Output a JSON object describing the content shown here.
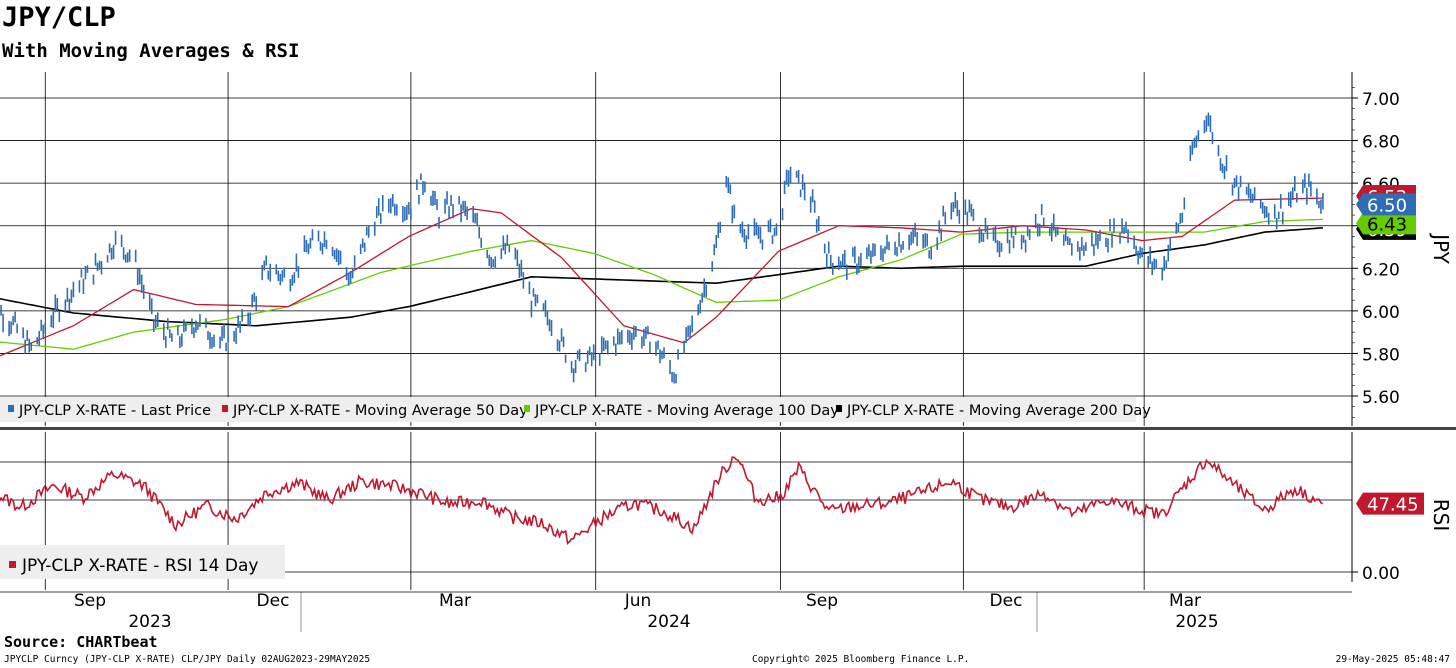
{
  "title": "JPY/CLP",
  "subtitle": "With Moving Averages & RSI",
  "source": "Source: CHARTbeat",
  "footer": {
    "left": "JPYCLP Curncy (JPY-CLP X-RATE) CLP/JPY  Daily 02AUG2023-29MAY2025",
    "middle": "Copyright© 2025 Bloomberg Finance L.P.",
    "right": "29-May-2025 05:48:47"
  },
  "chart_data": [
    {
      "type": "line",
      "panel": "price",
      "ylabel": "JPY",
      "ylim": [
        5.5,
        7.1
      ],
      "yticks": [
        "7.00",
        "6.80",
        "6.60",
        "6.40",
        "6.20",
        "6.00",
        "5.80",
        "5.60"
      ],
      "xrange": [
        "2023-08-02",
        "2025-05-29"
      ],
      "grid": true,
      "legend_position": "bottom-left",
      "series": [
        {
          "name": "JPY-CLP X-RATE - Last Price",
          "style": "bar",
          "color": "#2e6db4",
          "last_label": "6.50",
          "points": [
            [
              "2023-08-02",
              6.06
            ],
            [
              "2023-08-15",
              5.95
            ],
            [
              "2023-08-25",
              5.82
            ],
            [
              "2023-09-05",
              5.98
            ],
            [
              "2023-09-15",
              6.1
            ],
            [
              "2023-09-28",
              6.22
            ],
            [
              "2023-10-06",
              6.33
            ],
            [
              "2023-10-15",
              6.25
            ],
            [
              "2023-10-25",
              5.95
            ],
            [
              "2023-11-05",
              5.85
            ],
            [
              "2023-11-15",
              5.95
            ],
            [
              "2023-11-28",
              5.85
            ],
            [
              "2023-12-10",
              5.95
            ],
            [
              "2023-12-20",
              6.2
            ],
            [
              "2023-12-31",
              6.15
            ],
            [
              "2024-01-10",
              6.3
            ],
            [
              "2024-01-20",
              6.35
            ],
            [
              "2024-01-31",
              6.15
            ],
            [
              "2024-02-10",
              6.4
            ],
            [
              "2024-02-20",
              6.52
            ],
            [
              "2024-02-29",
              6.48
            ],
            [
              "2024-03-08",
              6.62
            ],
            [
              "2024-03-15",
              6.45
            ],
            [
              "2024-03-22",
              6.5
            ],
            [
              "2024-03-31",
              6.45
            ],
            [
              "2024-04-10",
              6.25
            ],
            [
              "2024-04-20",
              6.3
            ],
            [
              "2024-04-30",
              6.05
            ],
            [
              "2024-05-10",
              5.95
            ],
            [
              "2024-05-20",
              5.75
            ],
            [
              "2024-05-31",
              5.78
            ],
            [
              "2024-06-10",
              5.85
            ],
            [
              "2024-06-20",
              5.9
            ],
            [
              "2024-06-30",
              5.85
            ],
            [
              "2024-07-10",
              5.7
            ],
            [
              "2024-07-20",
              5.95
            ],
            [
              "2024-07-31",
              6.3
            ],
            [
              "2024-08-05",
              6.62
            ],
            [
              "2024-08-10",
              6.4
            ],
            [
              "2024-08-20",
              6.35
            ],
            [
              "2024-08-31",
              6.38
            ],
            [
              "2024-09-05",
              6.65
            ],
            [
              "2024-09-15",
              6.55
            ],
            [
              "2024-09-25",
              6.25
            ],
            [
              "2024-10-05",
              6.22
            ],
            [
              "2024-10-15",
              6.25
            ],
            [
              "2024-10-25",
              6.3
            ],
            [
              "2024-11-05",
              6.35
            ],
            [
              "2024-11-15",
              6.3
            ],
            [
              "2024-11-25",
              6.5
            ],
            [
              "2024-12-05",
              6.45
            ],
            [
              "2024-12-15",
              6.32
            ],
            [
              "2024-12-31",
              6.35
            ],
            [
              "2025-01-10",
              6.45
            ],
            [
              "2025-01-20",
              6.3
            ],
            [
              "2025-01-31",
              6.3
            ],
            [
              "2025-02-10",
              6.35
            ],
            [
              "2025-02-20",
              6.4
            ],
            [
              "2025-02-28",
              6.25
            ],
            [
              "2025-03-10",
              6.2
            ],
            [
              "2025-03-20",
              6.45
            ],
            [
              "2025-03-25",
              6.75
            ],
            [
              "2025-04-01",
              6.92
            ],
            [
              "2025-04-08",
              6.72
            ],
            [
              "2025-04-15",
              6.6
            ],
            [
              "2025-04-25",
              6.52
            ],
            [
              "2025-05-05",
              6.45
            ],
            [
              "2025-05-15",
              6.55
            ],
            [
              "2025-05-22",
              6.58
            ],
            [
              "2025-05-29",
              6.5
            ]
          ]
        },
        {
          "name": "JPY-CLP X-RATE - Moving Average 50 Day",
          "color": "#c0182f",
          "last_label": "6.53",
          "points": [
            [
              "2023-08-02",
              5.76
            ],
            [
              "2023-09-15",
              5.93
            ],
            [
              "2023-10-15",
              6.1
            ],
            [
              "2023-11-15",
              6.03
            ],
            [
              "2023-12-31",
              6.02
            ],
            [
              "2024-01-31",
              6.18
            ],
            [
              "2024-02-29",
              6.35
            ],
            [
              "2024-03-31",
              6.48
            ],
            [
              "2024-04-15",
              6.46
            ],
            [
              "2024-05-15",
              6.25
            ],
            [
              "2024-06-15",
              5.93
            ],
            [
              "2024-07-15",
              5.85
            ],
            [
              "2024-07-31",
              5.97
            ],
            [
              "2024-08-31",
              6.28
            ],
            [
              "2024-09-30",
              6.4
            ],
            [
              "2024-10-31",
              6.39
            ],
            [
              "2024-11-30",
              6.37
            ],
            [
              "2024-12-31",
              6.4
            ],
            [
              "2025-01-31",
              6.38
            ],
            [
              "2025-02-28",
              6.33
            ],
            [
              "2025-03-20",
              6.35
            ],
            [
              "2025-04-15",
              6.52
            ],
            [
              "2025-05-29",
              6.53
            ]
          ]
        },
        {
          "name": "JPY-CLP X-RATE - Moving Average 100 Day",
          "color": "#66cc00",
          "last_label": "6.43",
          "points": [
            [
              "2023-08-02",
              5.86
            ],
            [
              "2023-09-15",
              5.82
            ],
            [
              "2023-10-15",
              5.9
            ],
            [
              "2023-11-30",
              5.96
            ],
            [
              "2023-12-31",
              6.02
            ],
            [
              "2024-02-15",
              6.18
            ],
            [
              "2024-03-31",
              6.28
            ],
            [
              "2024-04-30",
              6.33
            ],
            [
              "2024-05-31",
              6.27
            ],
            [
              "2024-06-30",
              6.17
            ],
            [
              "2024-07-31",
              6.04
            ],
            [
              "2024-08-31",
              6.05
            ],
            [
              "2024-09-30",
              6.16
            ],
            [
              "2024-10-31",
              6.24
            ],
            [
              "2024-11-30",
              6.36
            ],
            [
              "2024-12-31",
              6.37
            ],
            [
              "2025-01-31",
              6.37
            ],
            [
              "2025-02-28",
              6.37
            ],
            [
              "2025-03-31",
              6.37
            ],
            [
              "2025-04-30",
              6.42
            ],
            [
              "2025-05-29",
              6.43
            ]
          ]
        },
        {
          "name": "JPY-CLP X-RATE - Moving Average 200 Day",
          "color": "#000000",
          "last_label": "6.39",
          "points": [
            [
              "2023-08-02",
              6.07
            ],
            [
              "2023-09-15",
              5.99
            ],
            [
              "2023-10-31",
              5.95
            ],
            [
              "2023-12-15",
              5.93
            ],
            [
              "2024-01-31",
              5.97
            ],
            [
              "2024-02-29",
              6.02
            ],
            [
              "2024-03-31",
              6.09
            ],
            [
              "2024-04-30",
              6.16
            ],
            [
              "2024-05-31",
              6.15
            ],
            [
              "2024-06-30",
              6.14
            ],
            [
              "2024-07-31",
              6.13
            ],
            [
              "2024-08-31",
              6.17
            ],
            [
              "2024-09-30",
              6.21
            ],
            [
              "2024-10-31",
              6.2
            ],
            [
              "2024-11-30",
              6.21
            ],
            [
              "2024-12-31",
              6.21
            ],
            [
              "2025-01-31",
              6.21
            ],
            [
              "2025-02-28",
              6.27
            ],
            [
              "2025-03-31",
              6.31
            ],
            [
              "2025-04-30",
              6.37
            ],
            [
              "2025-05-29",
              6.39
            ]
          ]
        }
      ]
    },
    {
      "type": "line",
      "panel": "rsi",
      "ylabel": "RSI",
      "yticks": [
        "0.00"
      ],
      "ylim": [
        0,
        100
      ],
      "xticks": [
        "Sep",
        "Dec",
        "Mar",
        "Jun",
        "Sep",
        "Dec",
        "Mar"
      ],
      "year_labels": [
        "2023",
        "2024",
        "2025"
      ],
      "legend_position": "bottom-left",
      "series": [
        {
          "name": "JPY-CLP X-RATE - RSI 14 Day",
          "color": "#c0182f",
          "last_label": "47.45",
          "points": [
            [
              "2023-08-02",
              58
            ],
            [
              "2023-08-20",
              45
            ],
            [
              "2023-09-05",
              60
            ],
            [
              "2023-09-20",
              52
            ],
            [
              "2023-10-05",
              68
            ],
            [
              "2023-10-20",
              60
            ],
            [
              "2023-11-05",
              33
            ],
            [
              "2023-11-20",
              46
            ],
            [
              "2023-12-05",
              37
            ],
            [
              "2023-12-20",
              55
            ],
            [
              "2024-01-05",
              62
            ],
            [
              "2024-01-20",
              50
            ],
            [
              "2024-02-05",
              63
            ],
            [
              "2024-02-20",
              60
            ],
            [
              "2024-03-05",
              55
            ],
            [
              "2024-03-20",
              47
            ],
            [
              "2024-04-05",
              50
            ],
            [
              "2024-04-20",
              38
            ],
            [
              "2024-05-05",
              34
            ],
            [
              "2024-05-20",
              22
            ],
            [
              "2024-06-05",
              38
            ],
            [
              "2024-06-20",
              48
            ],
            [
              "2024-07-05",
              42
            ],
            [
              "2024-07-20",
              30
            ],
            [
              "2024-08-01",
              65
            ],
            [
              "2024-08-10",
              82
            ],
            [
              "2024-08-20",
              50
            ],
            [
              "2024-09-01",
              52
            ],
            [
              "2024-09-10",
              72
            ],
            [
              "2024-09-25",
              42
            ],
            [
              "2024-10-10",
              46
            ],
            [
              "2024-10-25",
              48
            ],
            [
              "2024-11-10",
              55
            ],
            [
              "2024-11-25",
              63
            ],
            [
              "2024-12-10",
              50
            ],
            [
              "2024-12-25",
              45
            ],
            [
              "2025-01-10",
              55
            ],
            [
              "2025-01-25",
              40
            ],
            [
              "2025-02-10",
              50
            ],
            [
              "2025-02-25",
              44
            ],
            [
              "2025-03-10",
              40
            ],
            [
              "2025-03-20",
              58
            ],
            [
              "2025-04-01",
              78
            ],
            [
              "2025-04-15",
              60
            ],
            [
              "2025-04-30",
              43
            ],
            [
              "2025-05-15",
              58
            ],
            [
              "2025-05-29",
              47.45
            ]
          ]
        }
      ]
    }
  ]
}
